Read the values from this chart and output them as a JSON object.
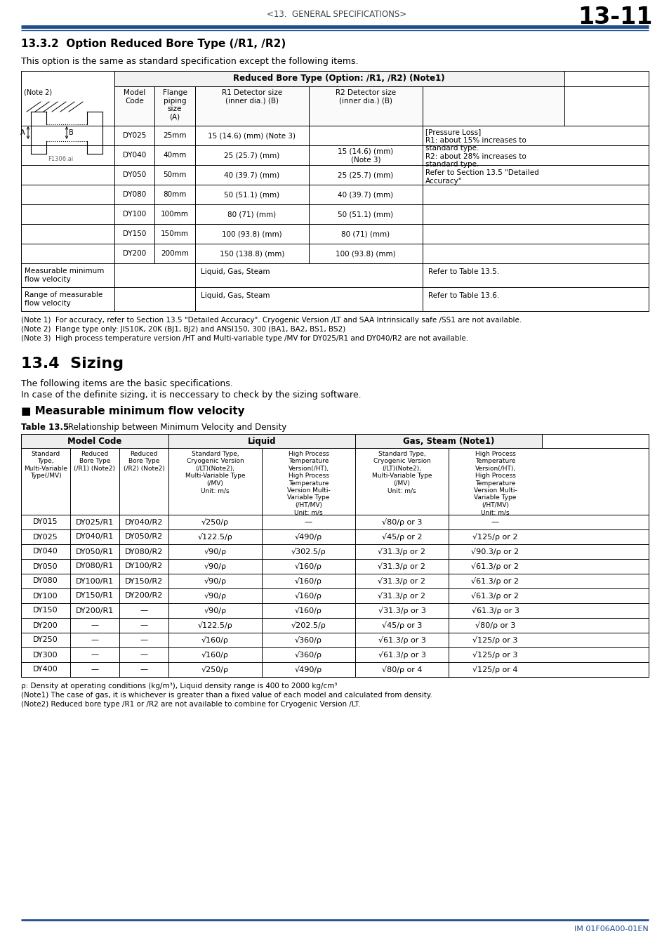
{
  "page_header_left": "<13.  GENERAL SPECIFICATIONS>",
  "page_header_right": "13-11",
  "header_line_color": "#1f4e8c",
  "section_title": "13.3.2  Option Reduced Bore Type (/R1, /R2)",
  "section_intro": "This option is the same as standard specification except the following items.",
  "table1_header_merged": "Reduced Bore Type (Option: /R1, /R2) (Note1)",
  "table1_notes": [
    "(Note 1)  For accuracy, refer to Section 13.5 \"Detailed Accuracy\". Cryogenic Version /LT and SAA Intrinsically safe /SS1 are not available.",
    "(Note 2)  Flange type only: JIS10K, 20K (BJ1, BJ2) and ANSI150, 300 (BA1, BA2, BS1, BS2)",
    "(Note 3)  High process temperature version /HT and Multi-variable type /MV for DY025/R1 and DY040/R2 are not available."
  ],
  "section2_title": "13.4  Sizing",
  "section2_intro1": "The following items are the basic specifications.",
  "section2_intro2": "In case of the definite sizing, it is neccessary to check by the sizing software.",
  "section2_sub": "■ Measurable minimum flow velocity",
  "table2_caption_bold": "Table 13.5",
  "table2_caption_rest": "    Relationship between Minimum Velocity and Density",
  "table2_col_group_headers": [
    "Model Code",
    "Liquid",
    "Gas, Steam (Note1)"
  ],
  "table2_col_headers": [
    "Standard\nType,\nMulti-Variable\nType(/MV)",
    "Reduced\nBore Type\n(/R1) (Note2)",
    "Reduced\nBore Type\n(/R2) (Note2)",
    "Standard Type,\nCryogenic Version\n(/LT)(Note2),\nMulti-Variable Type\n(/MV)\nUnit: m/s",
    "High Process\nTemperature\nVersion(/HT),\nHigh Process\nTemperature\nVersion Multi-\nVariable Type\n(/HT/MV)\nUnit: m/s",
    "Standard Type,\nCryogenic Version\n(/LT)(Note2),\nMulti-Variable Type\n(/MV)\nUnit: m/s",
    "High Process\nTemperature\nVersion(/HT),\nHigh Process\nTemperature\nVersion Multi-\nVariable Type\n(/HT/MV)\nUnit: m/s"
  ],
  "table2_rows": [
    [
      "DY015",
      "DY025/R1",
      "DY040/R2",
      "√250/ρ",
      "—",
      "√80/ρ or 3",
      "—"
    ],
    [
      "DY025",
      "DY040/R1",
      "DY050/R2",
      "√122.5/ρ",
      "√490/ρ",
      "√45/ρ or 2",
      "√125/ρ or 2"
    ],
    [
      "DY040",
      "DY050/R1",
      "DY080/R2",
      "√90/ρ",
      "√302.5/ρ",
      "√31.3/ρ or 2",
      "√90.3/ρ or 2"
    ],
    [
      "DY050",
      "DY080/R1",
      "DY100/R2",
      "√90/ρ",
      "√160/ρ",
      "√31.3/ρ or 2",
      "√61.3/ρ or 2"
    ],
    [
      "DY080",
      "DY100/R1",
      "DY150/R2",
      "√90/ρ",
      "√160/ρ",
      "√31.3/ρ or 2",
      "√61.3/ρ or 2"
    ],
    [
      "DY100",
      "DY150/R1",
      "DY200/R2",
      "√90/ρ",
      "√160/ρ",
      "√31.3/ρ or 2",
      "√61.3/ρ or 2"
    ],
    [
      "DY150",
      "DY200/R1",
      "—",
      "√90/ρ",
      "√160/ρ",
      "√31.3/ρ or 3",
      "√61.3/ρ or 3"
    ],
    [
      "DY200",
      "—",
      "—",
      "√122.5/ρ",
      "√202.5/ρ",
      "√45/ρ or 3",
      "√80/ρ or 3"
    ],
    [
      "DY250",
      "—",
      "—",
      "√160/ρ",
      "√360/ρ",
      "√61.3/ρ or 3",
      "√125/ρ or 3"
    ],
    [
      "DY300",
      "—",
      "—",
      "√160/ρ",
      "√360/ρ",
      "√61.3/ρ or 3",
      "√125/ρ or 3"
    ],
    [
      "DY400",
      "—",
      "—",
      "√250/ρ",
      "√490/ρ",
      "√80/ρ or 4",
      "√125/ρ or 4"
    ]
  ],
  "table2_notes": [
    "ρ: Density at operating conditions (kg/m³), Liquid density range is 400 to 2000 kg/cm³",
    "(Note1) The case of gas, it is whichever is greater than a fixed value of each model and calculated from density.",
    "(Note2) Reduced bore type /R1 or /R2 are not available to combine for Cryogenic Version /LT."
  ],
  "footer_text": "IM 01F06A00-01EN",
  "bg_color": "#ffffff",
  "header_color": "#1f4e8c"
}
